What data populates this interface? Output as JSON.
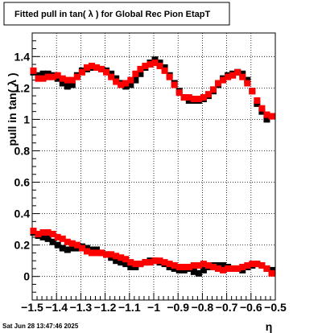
{
  "chart_data": {
    "type": "scatter",
    "title": "Fitted pull in tan( λ ) for Global Rec Pion EtapT",
    "xlabel": "η",
    "ylabel": "pull in tan( λ )",
    "xlim": [
      -1.5,
      -0.5
    ],
    "ylim": [
      -0.15,
      1.55
    ],
    "grid": true,
    "x_ticks": [
      {
        "value": -1.5,
        "label": "−1.5"
      },
      {
        "value": -1.4,
        "label": "−1.4"
      },
      {
        "value": -1.3,
        "label": "−1.3"
      },
      {
        "value": -1.2,
        "label": "−1.2"
      },
      {
        "value": -1.1,
        "label": "−1.1"
      },
      {
        "value": -1.0,
        "label": "−1"
      },
      {
        "value": -0.9,
        "label": "−0.9"
      },
      {
        "value": -0.8,
        "label": "−0.8"
      },
      {
        "value": -0.7,
        "label": "−0.7"
      },
      {
        "value": -0.6,
        "label": "−0.6"
      },
      {
        "value": -0.5,
        "label": "−0.5"
      }
    ],
    "y_ticks": [
      {
        "value": 0,
        "label": "0"
      },
      {
        "value": 0.2,
        "label": "0.2"
      },
      {
        "value": 0.4,
        "label": "0.4"
      },
      {
        "value": 0.6,
        "label": "0.6"
      },
      {
        "value": 0.8,
        "label": "0.8"
      },
      {
        "value": 1.0,
        "label": "1"
      },
      {
        "value": 1.2,
        "label": "1.2"
      },
      {
        "value": 1.4,
        "label": "1.4"
      }
    ],
    "series": [
      {
        "color": "#000000",
        "x": [
          -1.495,
          -1.475,
          -1.455,
          -1.435,
          -1.415,
          -1.395,
          -1.375,
          -1.355,
          -1.335,
          -1.315,
          -1.295,
          -1.275,
          -1.255,
          -1.235,
          -1.215,
          -1.195,
          -1.175,
          -1.155,
          -1.135,
          -1.115,
          -1.095,
          -1.075,
          -1.055,
          -1.035,
          -1.015,
          -0.995,
          -0.975,
          -0.955,
          -0.935,
          -0.915,
          -0.895,
          -0.875,
          -0.855,
          -0.835,
          -0.815,
          -0.795,
          -0.775,
          -0.755,
          -0.735,
          -0.715,
          -0.695,
          -0.675,
          -0.655,
          -0.635,
          -0.615,
          -0.595,
          -0.575,
          -0.555,
          -0.535,
          -0.515,
          -1.495,
          -1.475,
          -1.455,
          -1.435,
          -1.415,
          -1.395,
          -1.375,
          -1.355,
          -1.335,
          -1.315,
          -1.295,
          -1.275,
          -1.255,
          -1.235,
          -1.215,
          -1.195,
          -1.175,
          -1.155,
          -1.135,
          -1.115,
          -1.095,
          -1.075,
          -1.055,
          -1.035,
          -1.015,
          -0.995,
          -0.975,
          -0.955,
          -0.935,
          -0.915,
          -0.895,
          -0.875,
          -0.855,
          -0.835,
          -0.815,
          -0.795,
          -0.775,
          -0.755,
          -0.735,
          -0.715,
          -0.695,
          -0.675,
          -0.655,
          -0.635,
          -0.615,
          -0.595,
          -0.575,
          -0.555,
          -0.535,
          -0.515
        ],
        "y": [
          1.3,
          1.28,
          1.29,
          1.29,
          1.28,
          1.26,
          1.23,
          1.21,
          1.22,
          1.28,
          1.31,
          1.32,
          1.33,
          1.33,
          1.32,
          1.31,
          1.29,
          1.26,
          1.23,
          1.21,
          1.22,
          1.25,
          1.29,
          1.33,
          1.36,
          1.38,
          1.36,
          1.33,
          1.28,
          1.23,
          1.18,
          1.14,
          1.12,
          1.12,
          1.12,
          1.13,
          1.15,
          1.18,
          1.22,
          1.26,
          1.28,
          1.29,
          1.3,
          1.29,
          1.25,
          1.18,
          1.1,
          1.05,
          1.0,
          1.02,
          0.28,
          0.26,
          0.25,
          0.24,
          0.22,
          0.2,
          0.18,
          0.17,
          0.18,
          0.18,
          0.19,
          0.18,
          0.17,
          0.17,
          0.15,
          0.14,
          0.12,
          0.1,
          0.09,
          0.08,
          0.06,
          0.06,
          0.08,
          0.09,
          0.1,
          0.1,
          0.09,
          0.08,
          0.06,
          0.05,
          0.04,
          0.04,
          0.05,
          0.03,
          0.02,
          0.04,
          0.06,
          0.07,
          0.07,
          0.07,
          0.06,
          0.05,
          0.05,
          0.04,
          0.06,
          0.07,
          0.08,
          0.07,
          0.05,
          0.04
        ]
      },
      {
        "color": "#ff0000",
        "x": [
          -1.495,
          -1.475,
          -1.455,
          -1.435,
          -1.415,
          -1.395,
          -1.375,
          -1.355,
          -1.335,
          -1.315,
          -1.295,
          -1.275,
          -1.255,
          -1.235,
          -1.215,
          -1.195,
          -1.175,
          -1.155,
          -1.135,
          -1.115,
          -1.095,
          -1.075,
          -1.055,
          -1.035,
          -1.015,
          -0.995,
          -0.975,
          -0.955,
          -0.935,
          -0.915,
          -0.895,
          -0.875,
          -0.855,
          -0.835,
          -0.815,
          -0.795,
          -0.775,
          -0.755,
          -0.735,
          -0.715,
          -0.695,
          -0.675,
          -0.655,
          -0.635,
          -0.615,
          -0.595,
          -0.575,
          -0.555,
          -0.535,
          -0.515,
          -1.495,
          -1.475,
          -1.455,
          -1.435,
          -1.415,
          -1.395,
          -1.375,
          -1.355,
          -1.335,
          -1.315,
          -1.295,
          -1.275,
          -1.255,
          -1.235,
          -1.215,
          -1.195,
          -1.175,
          -1.155,
          -1.135,
          -1.115,
          -1.095,
          -1.075,
          -1.055,
          -1.035,
          -1.015,
          -0.995,
          -0.975,
          -0.955,
          -0.935,
          -0.915,
          -0.895,
          -0.875,
          -0.855,
          -0.835,
          -0.815,
          -0.795,
          -0.775,
          -0.755,
          -0.735,
          -0.715,
          -0.695,
          -0.675,
          -0.655,
          -0.635,
          -0.615,
          -0.595,
          -0.575,
          -0.555,
          -0.535,
          -0.515
        ],
        "y": [
          1.31,
          1.26,
          1.26,
          1.27,
          1.27,
          1.28,
          1.26,
          1.25,
          1.25,
          1.27,
          1.3,
          1.33,
          1.34,
          1.33,
          1.32,
          1.3,
          1.27,
          1.24,
          1.22,
          1.23,
          1.25,
          1.29,
          1.32,
          1.34,
          1.35,
          1.36,
          1.34,
          1.31,
          1.27,
          1.22,
          1.17,
          1.14,
          1.14,
          1.13,
          1.13,
          1.14,
          1.16,
          1.19,
          1.23,
          1.25,
          1.27,
          1.28,
          1.3,
          1.27,
          1.23,
          1.18,
          1.12,
          1.07,
          1.03,
          1.02,
          0.29,
          0.27,
          0.28,
          0.28,
          0.27,
          0.25,
          0.24,
          0.22,
          0.21,
          0.2,
          0.18,
          0.16,
          0.15,
          0.15,
          0.15,
          0.14,
          0.14,
          0.13,
          0.12,
          0.11,
          0.09,
          0.08,
          0.08,
          0.09,
          0.09,
          0.1,
          0.1,
          0.09,
          0.08,
          0.07,
          0.06,
          0.06,
          0.06,
          0.07,
          0.07,
          0.08,
          0.07,
          0.06,
          0.05,
          0.04,
          0.05,
          0.05,
          0.05,
          0.06,
          0.07,
          0.08,
          0.08,
          0.07,
          0.05,
          0.02
        ]
      }
    ]
  },
  "footer": {
    "timestamp": "Sat Jun 28 13:47:46 2025"
  }
}
